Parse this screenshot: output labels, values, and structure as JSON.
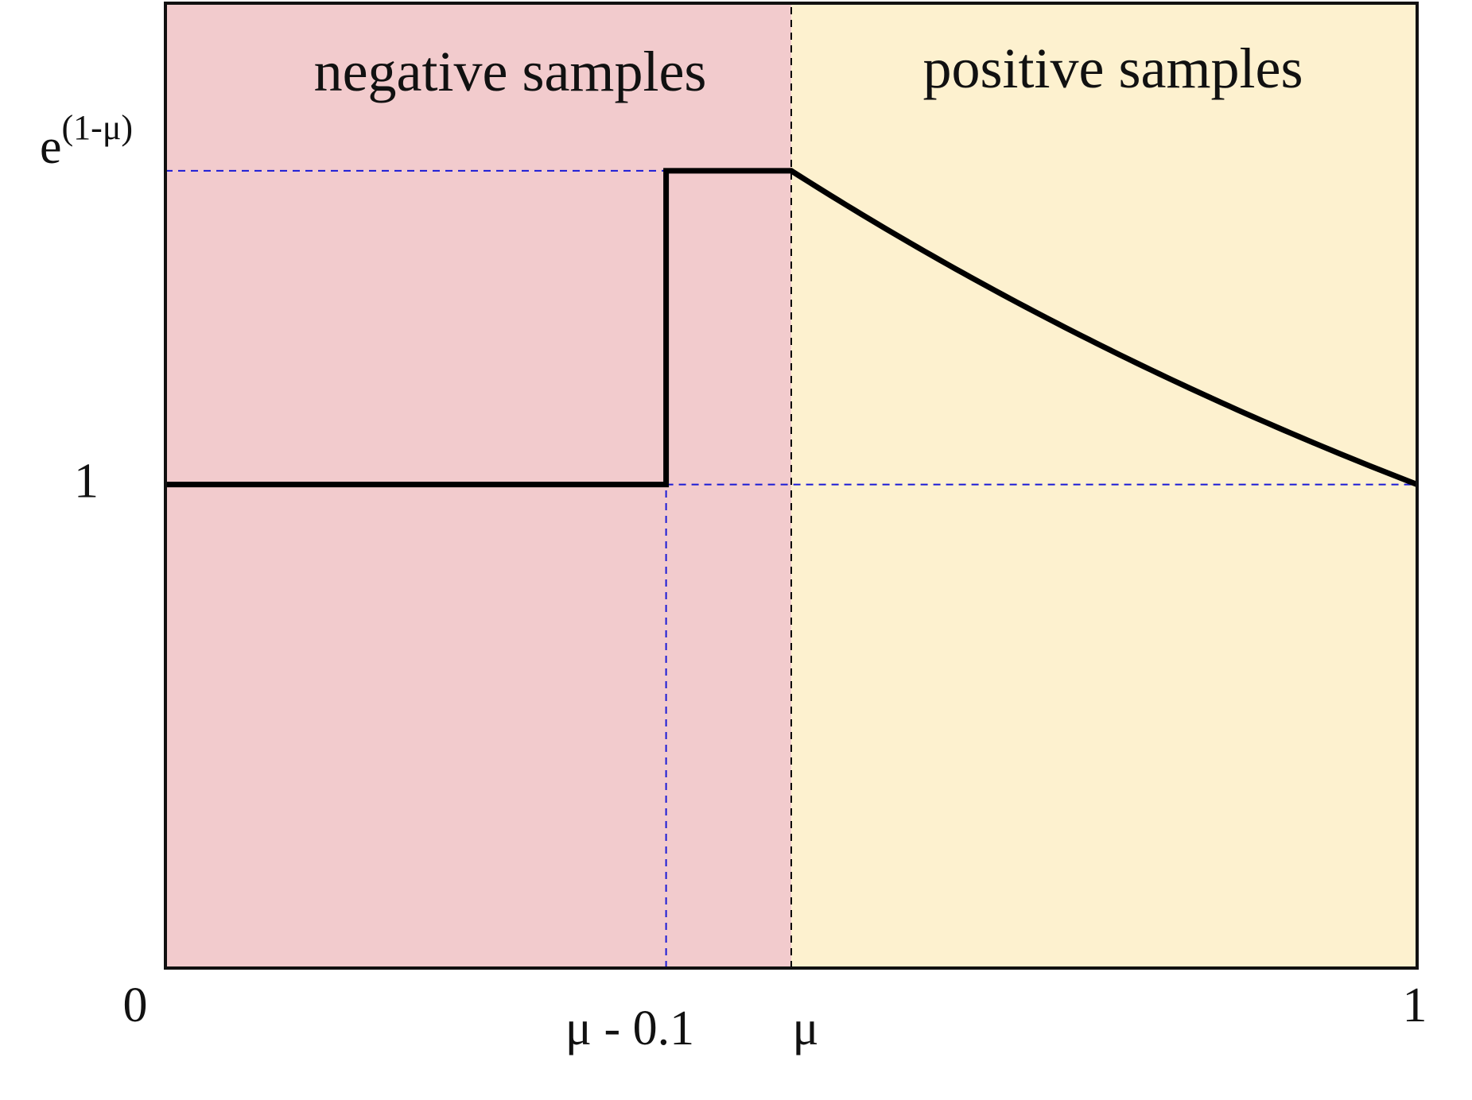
{
  "chart_data": {
    "type": "line",
    "title": "",
    "xlabel": "",
    "ylabel": "",
    "mu": 0.5,
    "xlim": [
      0,
      1
    ],
    "ylim": [
      0,
      1.9953
    ],
    "regions": [
      {
        "name": "negative samples",
        "x_range": [
          0,
          0.5
        ],
        "color": "#f2cbcd"
      },
      {
        "name": "positive samples",
        "x_range": [
          0.5,
          1
        ],
        "color": "#fdf1cf"
      }
    ],
    "x_ticks": [
      {
        "x": 0,
        "label": "0"
      },
      {
        "x": 0.4,
        "label": "μ - 0.1"
      },
      {
        "x": 0.5,
        "label": "μ"
      },
      {
        "x": 1,
        "label": "1"
      }
    ],
    "y_ticks": [
      {
        "y": 1,
        "label": "1"
      },
      {
        "y": 1.6487,
        "label": "e",
        "superscript": "(1-μ)"
      }
    ],
    "series": [
      {
        "piecewise": [
          {
            "x_range": [
              0,
              0.4
            ],
            "rule": "y = 1"
          },
          {
            "x_range": [
              0.4,
              0.5
            ],
            "rule": "y = e^(1-μ)"
          },
          {
            "x_range": [
              0.5,
              1
            ],
            "rule": "y = e^(1-x)"
          }
        ],
        "color": "#000000"
      }
    ],
    "reference_lines": [
      {
        "orientation": "horizontal",
        "y": 1.6487,
        "x_range": [
          0,
          0.4
        ],
        "color": "#1a1ad6"
      },
      {
        "orientation": "horizontal",
        "y": 1,
        "x_range": [
          0.4,
          1
        ],
        "color": "#1a1ad6"
      },
      {
        "orientation": "vertical",
        "x": 0.4,
        "y_range": [
          0,
          1
        ],
        "color": "#1a1ad6"
      },
      {
        "orientation": "vertical",
        "x": 0.5,
        "y_range": [
          0,
          1.9953
        ],
        "color": "#000000"
      }
    ]
  }
}
